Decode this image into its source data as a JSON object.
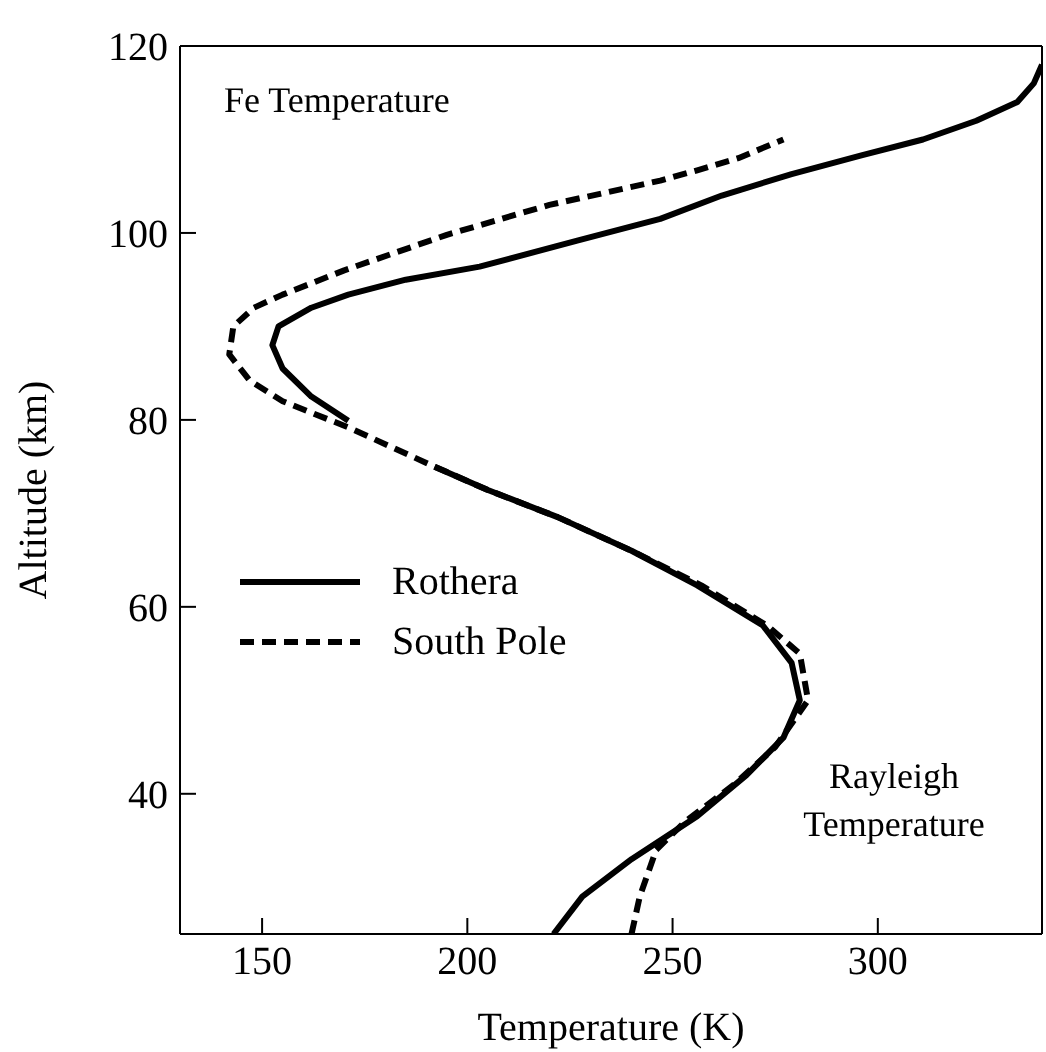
{
  "chart_data": {
    "type": "line",
    "xlabel": "Temperature (K)",
    "ylabel": "Altitude (km)",
    "annotations": [
      "Fe Temperature",
      "Rayleigh Temperature"
    ],
    "xlim": [
      130,
      340
    ],
    "xticks": [
      150,
      200,
      250,
      300
    ],
    "ylim": [
      25,
      120
    ],
    "yticks": [
      40,
      60,
      80,
      100,
      120
    ],
    "grid": false,
    "legend": "left",
    "marker": "none",
    "series": [
      {
        "name": "Rothera",
        "color": "#000000",
        "line_style": "solid",
        "x": [
          221,
          228,
          240,
          256,
          268,
          277,
          281,
          279,
          272,
          256,
          240,
          222,
          205,
          192,
          null,
          171,
          162,
          155,
          152.5,
          154,
          162,
          171,
          185,
          203,
          227,
          240,
          247,
          262,
          279,
          296,
          311,
          324,
          334,
          338,
          340
        ],
        "values": [
          25,
          29,
          33,
          37.6,
          42,
          46,
          50,
          54,
          58,
          62.3,
          66,
          69.6,
          72.5,
          75,
          null,
          79.9,
          82.5,
          85.5,
          88,
          90,
          92,
          93.4,
          95,
          96.4,
          99.2,
          100.7,
          101.5,
          104,
          106.3,
          108.3,
          110,
          112,
          114,
          116,
          118
        ]
      },
      {
        "name": "South Pole",
        "color": "#000000",
        "line_style": "dashed",
        "x": [
          240,
          242,
          246,
          253,
          265,
          275,
          283,
          281,
          273,
          257,
          240,
          222,
          205,
          192,
          171,
          155,
          147,
          142,
          143,
          148,
          155,
          170,
          195,
          220,
          247,
          256,
          266,
          277
        ],
        "values": [
          25,
          29,
          34,
          37,
          41,
          45,
          50,
          55,
          58,
          62.3,
          66,
          69.6,
          72.5,
          75,
          79.2,
          82,
          84.2,
          87,
          90,
          92,
          93.4,
          96,
          99.8,
          103,
          105.6,
          106.7,
          108,
          110
        ]
      }
    ]
  }
}
